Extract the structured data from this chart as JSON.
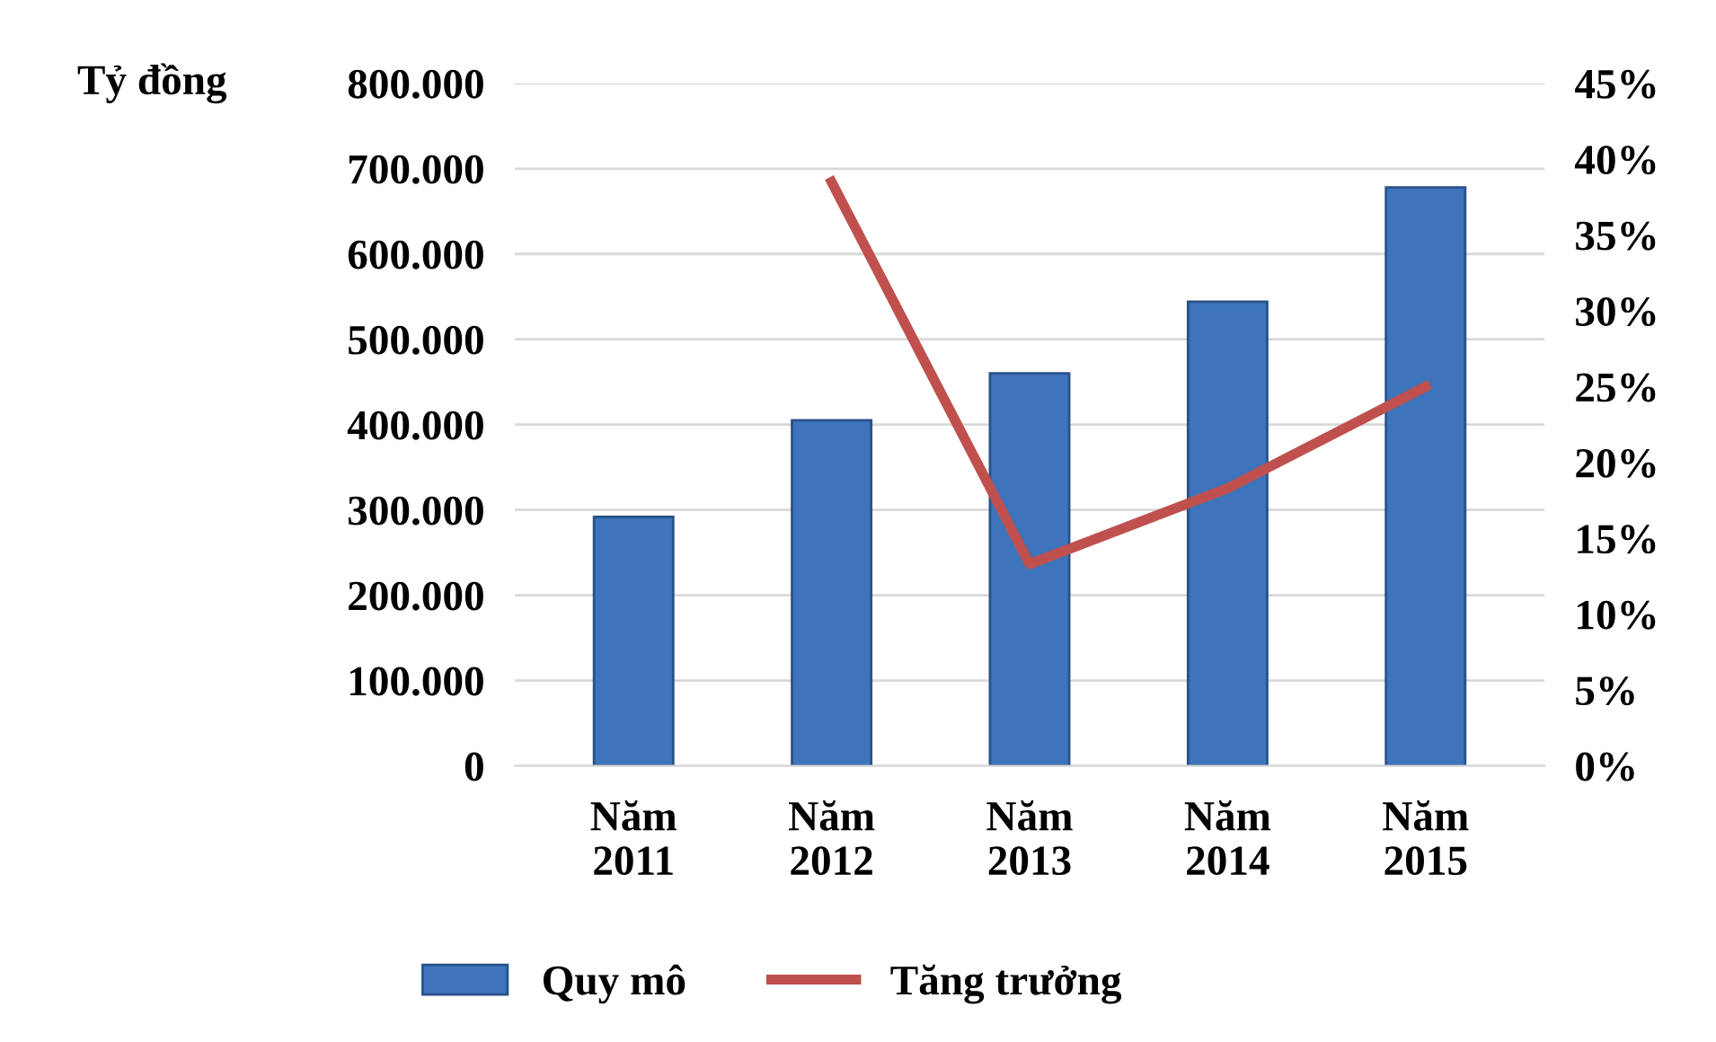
{
  "chart_data": {
    "type": "bar",
    "ylabel": "Tỷ đồng",
    "categories": [
      "Năm\n2011",
      "Năm\n2012",
      "Năm\n2013",
      "Năm\n2014",
      "Năm\n2015"
    ],
    "series": [
      {
        "name": "Quy mô",
        "color": "#3d74bb",
        "values": [
          292000,
          405000,
          460000,
          544000,
          678000
        ]
      },
      {
        "name": "Tăng trưởng",
        "type": "line",
        "axis": "y2",
        "color": "#c0504d",
        "values": [
          null,
          38.5,
          13.3,
          18.3,
          25.0
        ]
      }
    ],
    "ylim": [
      0,
      800000
    ],
    "yticks": [
      {
        "value": 0,
        "label": "0"
      },
      {
        "value": 100000,
        "label": "100.000"
      },
      {
        "value": 200000,
        "label": "200.000"
      },
      {
        "value": 300000,
        "label": "300.000"
      },
      {
        "value": 400000,
        "label": "400.000"
      },
      {
        "value": 500000,
        "label": "500.000"
      },
      {
        "value": 600000,
        "label": "600.000"
      },
      {
        "value": 700000,
        "label": "700.000"
      },
      {
        "value": 800000,
        "label": "800.000"
      }
    ],
    "y2lim": [
      0,
      45
    ],
    "y2ticks": [
      {
        "value": 0,
        "label": "0%"
      },
      {
        "value": 5,
        "label": "5%"
      },
      {
        "value": 10,
        "label": "10%"
      },
      {
        "value": 15,
        "label": "15%"
      },
      {
        "value": 20,
        "label": "20%"
      },
      {
        "value": 25,
        "label": "25%"
      },
      {
        "value": 30,
        "label": "30%"
      },
      {
        "value": 35,
        "label": "35%"
      },
      {
        "value": 40,
        "label": "40%"
      },
      {
        "value": 45,
        "label": "45%"
      }
    ],
    "grid": "y",
    "legend": "bottom",
    "marker": "none",
    "line_style": "solid"
  }
}
